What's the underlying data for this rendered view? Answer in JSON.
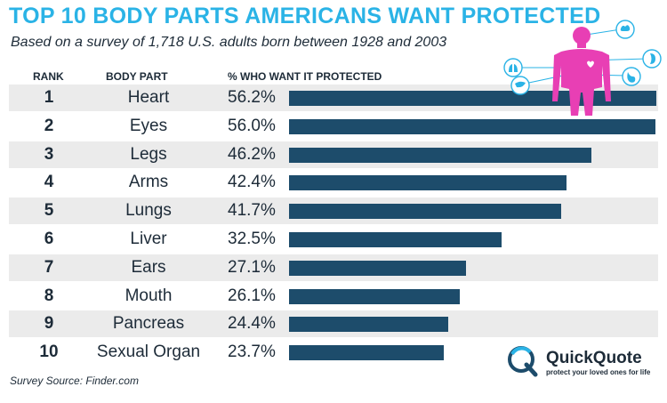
{
  "title": "TOP 10 BODY PARTS AMERICANS WANT PROTECTED",
  "subtitle": "Based on a survey of 1,718 U.S. adults born between 1928 and 2003",
  "source": "Survey Source: Finder.com",
  "logo": {
    "name": "QuickQuote",
    "tagline": "protect your loved ones for life"
  },
  "icons": [
    "human-body-icon",
    "brain-icon",
    "heart-icon",
    "lungs-icon",
    "liver-icon",
    "stomach-icon",
    "kidney-icon"
  ],
  "colors": {
    "title": "#2ab3e6",
    "bar": "#1d4c6b",
    "text": "#1d2b38",
    "row_shade": "#ebebeb",
    "body": "#e83fb4"
  },
  "chart_data": {
    "type": "bar",
    "orientation": "horizontal",
    "columns": {
      "rank": "RANK",
      "part": "BODY PART",
      "value": "% WHO WANT IT PROTECTED"
    },
    "xlim": [
      0,
      60
    ],
    "grid": false,
    "rows": [
      {
        "rank": "1",
        "part": "Heart",
        "value": 56.2,
        "label": "56.2%"
      },
      {
        "rank": "2",
        "part": "Eyes",
        "value": 56.0,
        "label": "56.0%"
      },
      {
        "rank": "3",
        "part": "Legs",
        "value": 46.2,
        "label": "46.2%"
      },
      {
        "rank": "4",
        "part": "Arms",
        "value": 42.4,
        "label": "42.4%"
      },
      {
        "rank": "5",
        "part": "Lungs",
        "value": 41.7,
        "label": "41.7%"
      },
      {
        "rank": "6",
        "part": "Liver",
        "value": 32.5,
        "label": "32.5%"
      },
      {
        "rank": "7",
        "part": "Ears",
        "value": 27.1,
        "label": "27.1%"
      },
      {
        "rank": "8",
        "part": "Mouth",
        "value": 26.1,
        "label": "26.1%"
      },
      {
        "rank": "9",
        "part": "Pancreas",
        "value": 24.4,
        "label": "24.4%"
      },
      {
        "rank": "10",
        "part": "Sexual Organ",
        "value": 23.7,
        "label": "23.7%"
      }
    ]
  }
}
